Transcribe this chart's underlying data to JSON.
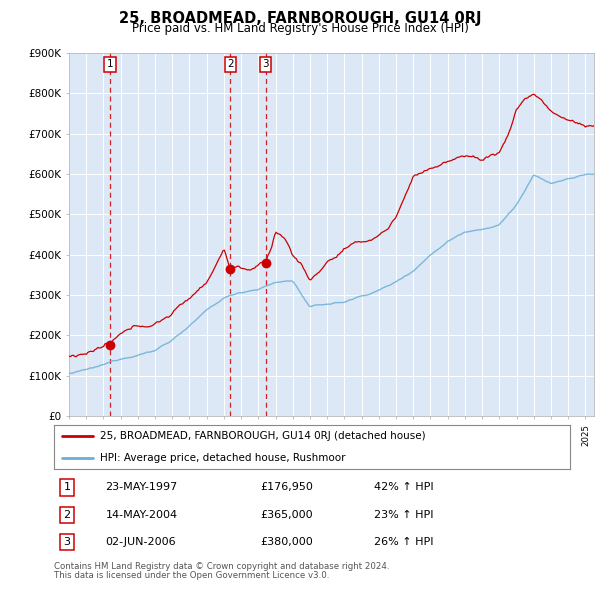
{
  "title": "25, BROADMEAD, FARNBOROUGH, GU14 0RJ",
  "subtitle": "Price paid vs. HM Land Registry's House Price Index (HPI)",
  "legend_line1": "25, BROADMEAD, FARNBOROUGH, GU14 0RJ (detached house)",
  "legend_line2": "HPI: Average price, detached house, Rushmoor",
  "table": [
    {
      "num": 1,
      "date": "23-MAY-1997",
      "price": "£176,950",
      "change": "42% ↑ HPI"
    },
    {
      "num": 2,
      "date": "14-MAY-2004",
      "price": "£365,000",
      "change": "23% ↑ HPI"
    },
    {
      "num": 3,
      "date": "02-JUN-2006",
      "price": "£380,000",
      "change": "26% ↑ HPI"
    }
  ],
  "footnote1": "Contains HM Land Registry data © Crown copyright and database right 2024.",
  "footnote2": "This data is licensed under the Open Government Licence v3.0.",
  "sale_dates": [
    1997.38,
    2004.37,
    2006.42
  ],
  "sale_prices": [
    176950,
    365000,
    380000
  ],
  "hpi_color": "#6baed6",
  "price_color": "#cc0000",
  "dashed_color": "#cc0000",
  "background_plot": "#dce8f5",
  "background_fig": "#ffffff",
  "ylim": [
    0,
    900000
  ],
  "xlim_start": 1995.0,
  "xlim_end": 2025.5
}
